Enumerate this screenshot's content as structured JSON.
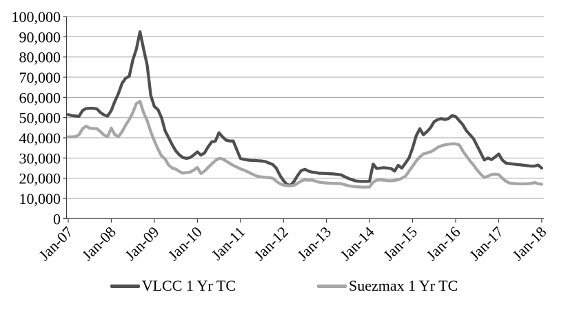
{
  "chart_data": {
    "type": "line",
    "title": "",
    "xlabel": "",
    "ylabel": "",
    "x_unit": "month",
    "x_start": "Jan-07",
    "x_end": "Jan-18",
    "months_per_tick": 12,
    "x_tick_labels": [
      "Jan-07",
      "Jan-08",
      "Jan-09",
      "Jan-10",
      "Jan-11",
      "Jan-12",
      "Jan-13",
      "Jan-14",
      "Jan-15",
      "Jan-16",
      "Jan-17",
      "Jan-18"
    ],
    "ylim": [
      0,
      100000
    ],
    "y_tick_step": 10000,
    "y_tick_labels": [
      "0",
      "10,000",
      "20,000",
      "30,000",
      "40,000",
      "50,000",
      "60,000",
      "70,000",
      "80,000",
      "90,000",
      "100,000"
    ],
    "grid": "horizontal",
    "legend_position": "bottom",
    "colors": {
      "vlcc_line": "#4f4f4f",
      "suezmax_line": "#a6a6a6",
      "gridline": "#a3a3a3",
      "axis": "#404040",
      "text": "#000000"
    },
    "series": [
      {
        "name": "VLCC 1 Yr TC",
        "color": "#4f4f4f",
        "values": [
          51500,
          51000,
          50800,
          50600,
          53500,
          54500,
          54600,
          54600,
          54300,
          52500,
          51300,
          50800,
          53500,
          58000,
          62000,
          67000,
          69500,
          70500,
          78500,
          84000,
          92500,
          84000,
          76000,
          61000,
          55500,
          54000,
          50000,
          43500,
          40000,
          36500,
          33500,
          31500,
          30200,
          29800,
          30200,
          31500,
          33000,
          31400,
          32500,
          35500,
          38000,
          38300,
          42500,
          40500,
          38800,
          38400,
          38400,
          34000,
          29800,
          29300,
          29000,
          28800,
          28800,
          28600,
          28500,
          28200,
          27500,
          26800,
          25000,
          21500,
          18800,
          16800,
          16500,
          18500,
          21500,
          23800,
          24400,
          23500,
          23000,
          22800,
          22400,
          22400,
          22300,
          22200,
          22100,
          21900,
          21700,
          20800,
          20000,
          19300,
          18700,
          18500,
          18400,
          18400,
          18500,
          27000,
          24800,
          25000,
          25200,
          25000,
          24800,
          23500,
          26400,
          25000,
          27500,
          30000,
          35000,
          41000,
          44500,
          41500,
          43000,
          45000,
          48000,
          49000,
          49500,
          49000,
          49500,
          51000,
          50500,
          48500,
          46500,
          43500,
          41500,
          39500,
          36000,
          32500,
          29000,
          30000,
          29200,
          30500,
          32000,
          29000,
          27500,
          27200,
          27000,
          26800,
          26600,
          26400,
          26200,
          26000,
          26000,
          26500,
          25000
        ]
      },
      {
        "name": "Suezmax 1 Yr TC",
        "color": "#a6a6a6",
        "values": [
          40500,
          40400,
          40600,
          41500,
          44500,
          45800,
          44700,
          44600,
          44500,
          43000,
          41300,
          40600,
          44800,
          41500,
          40600,
          43000,
          46300,
          49000,
          52500,
          57000,
          58000,
          52500,
          48500,
          43000,
          38500,
          34500,
          31000,
          29500,
          26500,
          25000,
          24500,
          23300,
          22500,
          22800,
          23000,
          24000,
          25300,
          22300,
          23500,
          25300,
          27000,
          28700,
          29800,
          29500,
          28500,
          27400,
          26300,
          25500,
          24600,
          24000,
          23200,
          22300,
          21500,
          20800,
          20600,
          20400,
          20300,
          20000,
          18500,
          17300,
          16600,
          16300,
          16200,
          16500,
          17500,
          18700,
          19200,
          19000,
          19100,
          18500,
          18000,
          17800,
          17600,
          17500,
          17400,
          17400,
          17300,
          16800,
          16300,
          16000,
          15800,
          15700,
          15600,
          15600,
          15700,
          18000,
          19000,
          19200,
          19000,
          18800,
          18700,
          18900,
          19200,
          20000,
          21000,
          23500,
          26000,
          28500,
          30500,
          32000,
          32500,
          33000,
          34000,
          35300,
          36000,
          36500,
          36800,
          37000,
          37000,
          36500,
          33500,
          31000,
          28500,
          26500,
          24000,
          22000,
          20300,
          21000,
          21800,
          22000,
          21800,
          20000,
          18500,
          17600,
          17400,
          17300,
          17200,
          17200,
          17300,
          17400,
          17800,
          17300,
          17000
        ]
      }
    ]
  }
}
